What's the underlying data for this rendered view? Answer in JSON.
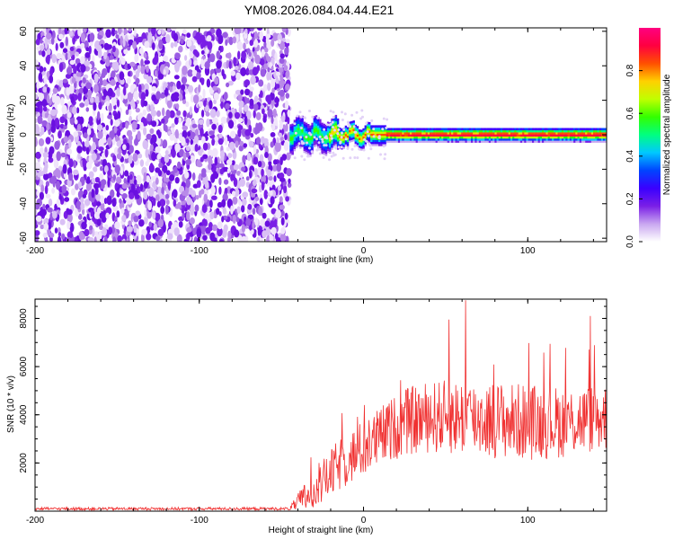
{
  "title": "YM08.2026.084.04.44.E21",
  "chart_data": [
    {
      "type": "heatmap",
      "name": "spectrogram",
      "xlabel": "Height of straight line (km)",
      "ylabel": "Frequency (Hz)",
      "xlim": [
        -200,
        148
      ],
      "ylim": [
        -62,
        62
      ],
      "xticks": [
        -200,
        -100,
        0,
        100
      ],
      "yticks": [
        -60,
        -40,
        -20,
        0,
        20,
        40,
        60
      ],
      "noise_region_x": [
        -200,
        -45
      ],
      "signal_line_y": 0,
      "signal_start_x": -45,
      "colorbar": {
        "label": "Normalized spectral amplitude",
        "range": [
          0,
          1
        ],
        "ticks": [
          "0.0",
          "0.2",
          "0.4",
          "0.6",
          "0.8"
        ],
        "colormap": [
          "#ffffff",
          "#c9a6f0",
          "#7a1fe6",
          "#3a00ff",
          "#0044ff",
          "#00c8ff",
          "#00ff80",
          "#33ff00",
          "#c0ff00",
          "#ffd000",
          "#ff5000",
          "#ff0040",
          "#ff0080"
        ]
      }
    },
    {
      "type": "line",
      "name": "snr",
      "xlabel": "Height of straight line (km)",
      "ylabel": "SNR (10 * v/v)",
      "xlim": [
        -200,
        148
      ],
      "ylim": [
        0,
        8800
      ],
      "xticks": [
        -200,
        -100,
        0,
        100
      ],
      "yticks": [
        2000,
        4000,
        6000,
        8000
      ],
      "color": "#f03030",
      "envelope": {
        "x": [
          -200,
          -45,
          -35,
          -25,
          -15,
          0,
          15,
          25,
          40,
          60,
          80,
          100,
          120,
          148
        ],
        "baseline": [
          100,
          100,
          600,
          1200,
          1900,
          2600,
          3300,
          3700,
          3900,
          3900,
          3800,
          3700,
          3700,
          3900
        ],
        "spread": [
          60,
          60,
          700,
          900,
          1100,
          1200,
          1300,
          1400,
          1500,
          1600,
          1600,
          1600,
          1500,
          1400
        ]
      },
      "peaks": [
        {
          "x": 62,
          "y": 8750
        },
        {
          "x": 52,
          "y": 7950
        },
        {
          "x": 138,
          "y": 8100
        },
        {
          "x": 148,
          "y": 5000
        }
      ]
    }
  ]
}
